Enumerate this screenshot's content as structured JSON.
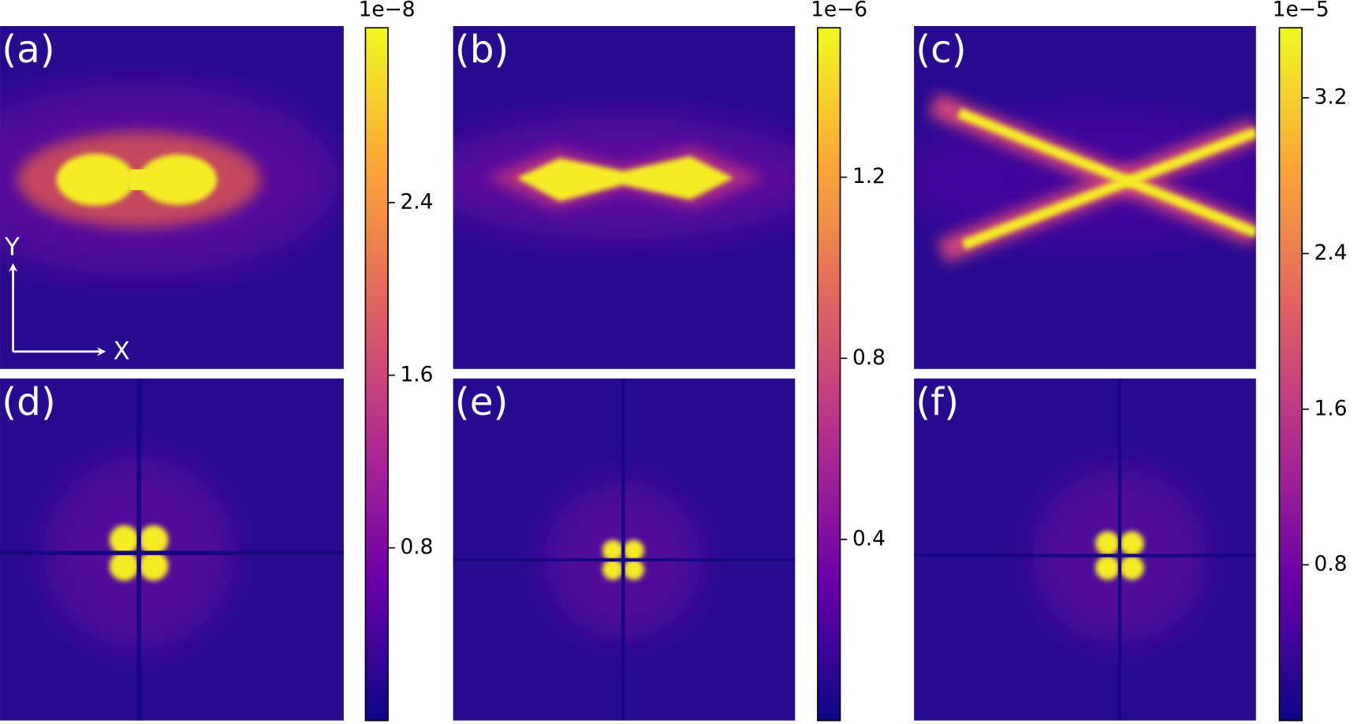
{
  "chart_data": [
    {
      "type": "heatmap",
      "colormap": "plasma",
      "panel_labels": [
        "(a)",
        "(d)"
      ],
      "axis_labels": {
        "y": "Y",
        "x": "X"
      },
      "colorbar_label": "1e−8",
      "ylim": [
        0,
        3.21
      ],
      "yticks": [
        0.8,
        1.6,
        2.4
      ]
    },
    {
      "type": "heatmap",
      "colormap": "plasma",
      "panel_labels": [
        "(b)",
        "(e)"
      ],
      "colorbar_label": "1e−6",
      "ylim": [
        0,
        1.53
      ],
      "yticks": [
        0.4,
        0.8,
        1.2
      ]
    },
    {
      "type": "heatmap",
      "colormap": "plasma",
      "panel_labels": [
        "(c)",
        "(f)"
      ],
      "colorbar_label": "1e−5",
      "ylim": [
        0,
        3.56
      ],
      "yticks": [
        0.8,
        1.6,
        2.4,
        3.2
      ]
    }
  ]
}
